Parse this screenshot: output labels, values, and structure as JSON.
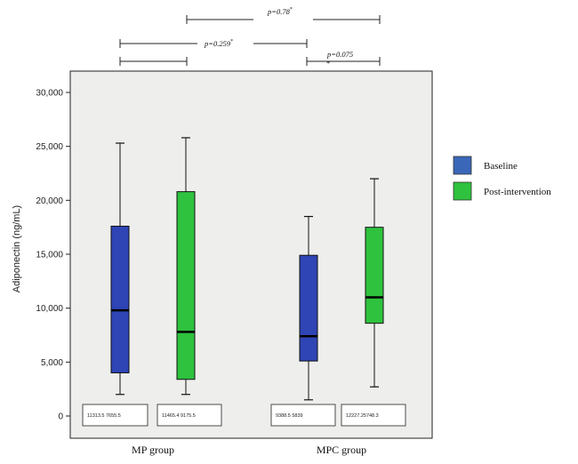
{
  "chart_data": {
    "type": "boxplot",
    "ylabel": "Adiponectin (ng/mL)",
    "ylim": [
      0,
      30000
    ],
    "y_ticks": [
      "0",
      "5,000",
      "10,000",
      "15,000",
      "20,000",
      "25,000",
      "30,000"
    ],
    "categories": [
      "MP group",
      "MPC group"
    ],
    "series": [
      {
        "name": "Baseline",
        "color": "#2f44b5",
        "boxes": [
          {
            "min": 2000,
            "q1": 4000,
            "median": 9800,
            "q3": 17600,
            "max": 25300
          },
          {
            "min": 1500,
            "q1": 5100,
            "median": 7400,
            "q3": 14900,
            "max": 18500
          }
        ]
      },
      {
        "name": "Post-intervention",
        "color": "#2ec23e",
        "boxes": [
          {
            "min": 2000,
            "q1": 3400,
            "median": 7800,
            "q3": 20800,
            "max": 25800
          },
          {
            "min": 2700,
            "q1": 8600,
            "median": 11000,
            "q3": 17500,
            "max": 22000
          }
        ]
      }
    ],
    "stat_boxes": [
      "11313.5 7655.5",
      "11465.4 9175.5",
      "9388.5 5839",
      "12227.25748.3"
    ],
    "comparisons": [
      {
        "label": "p=0.259",
        "mark": "*"
      },
      {
        "label": "p=0.78",
        "mark": "*"
      },
      {
        "label": "p=0.075",
        "mark": "*"
      }
    ],
    "legend_position": "right",
    "grid": false
  }
}
